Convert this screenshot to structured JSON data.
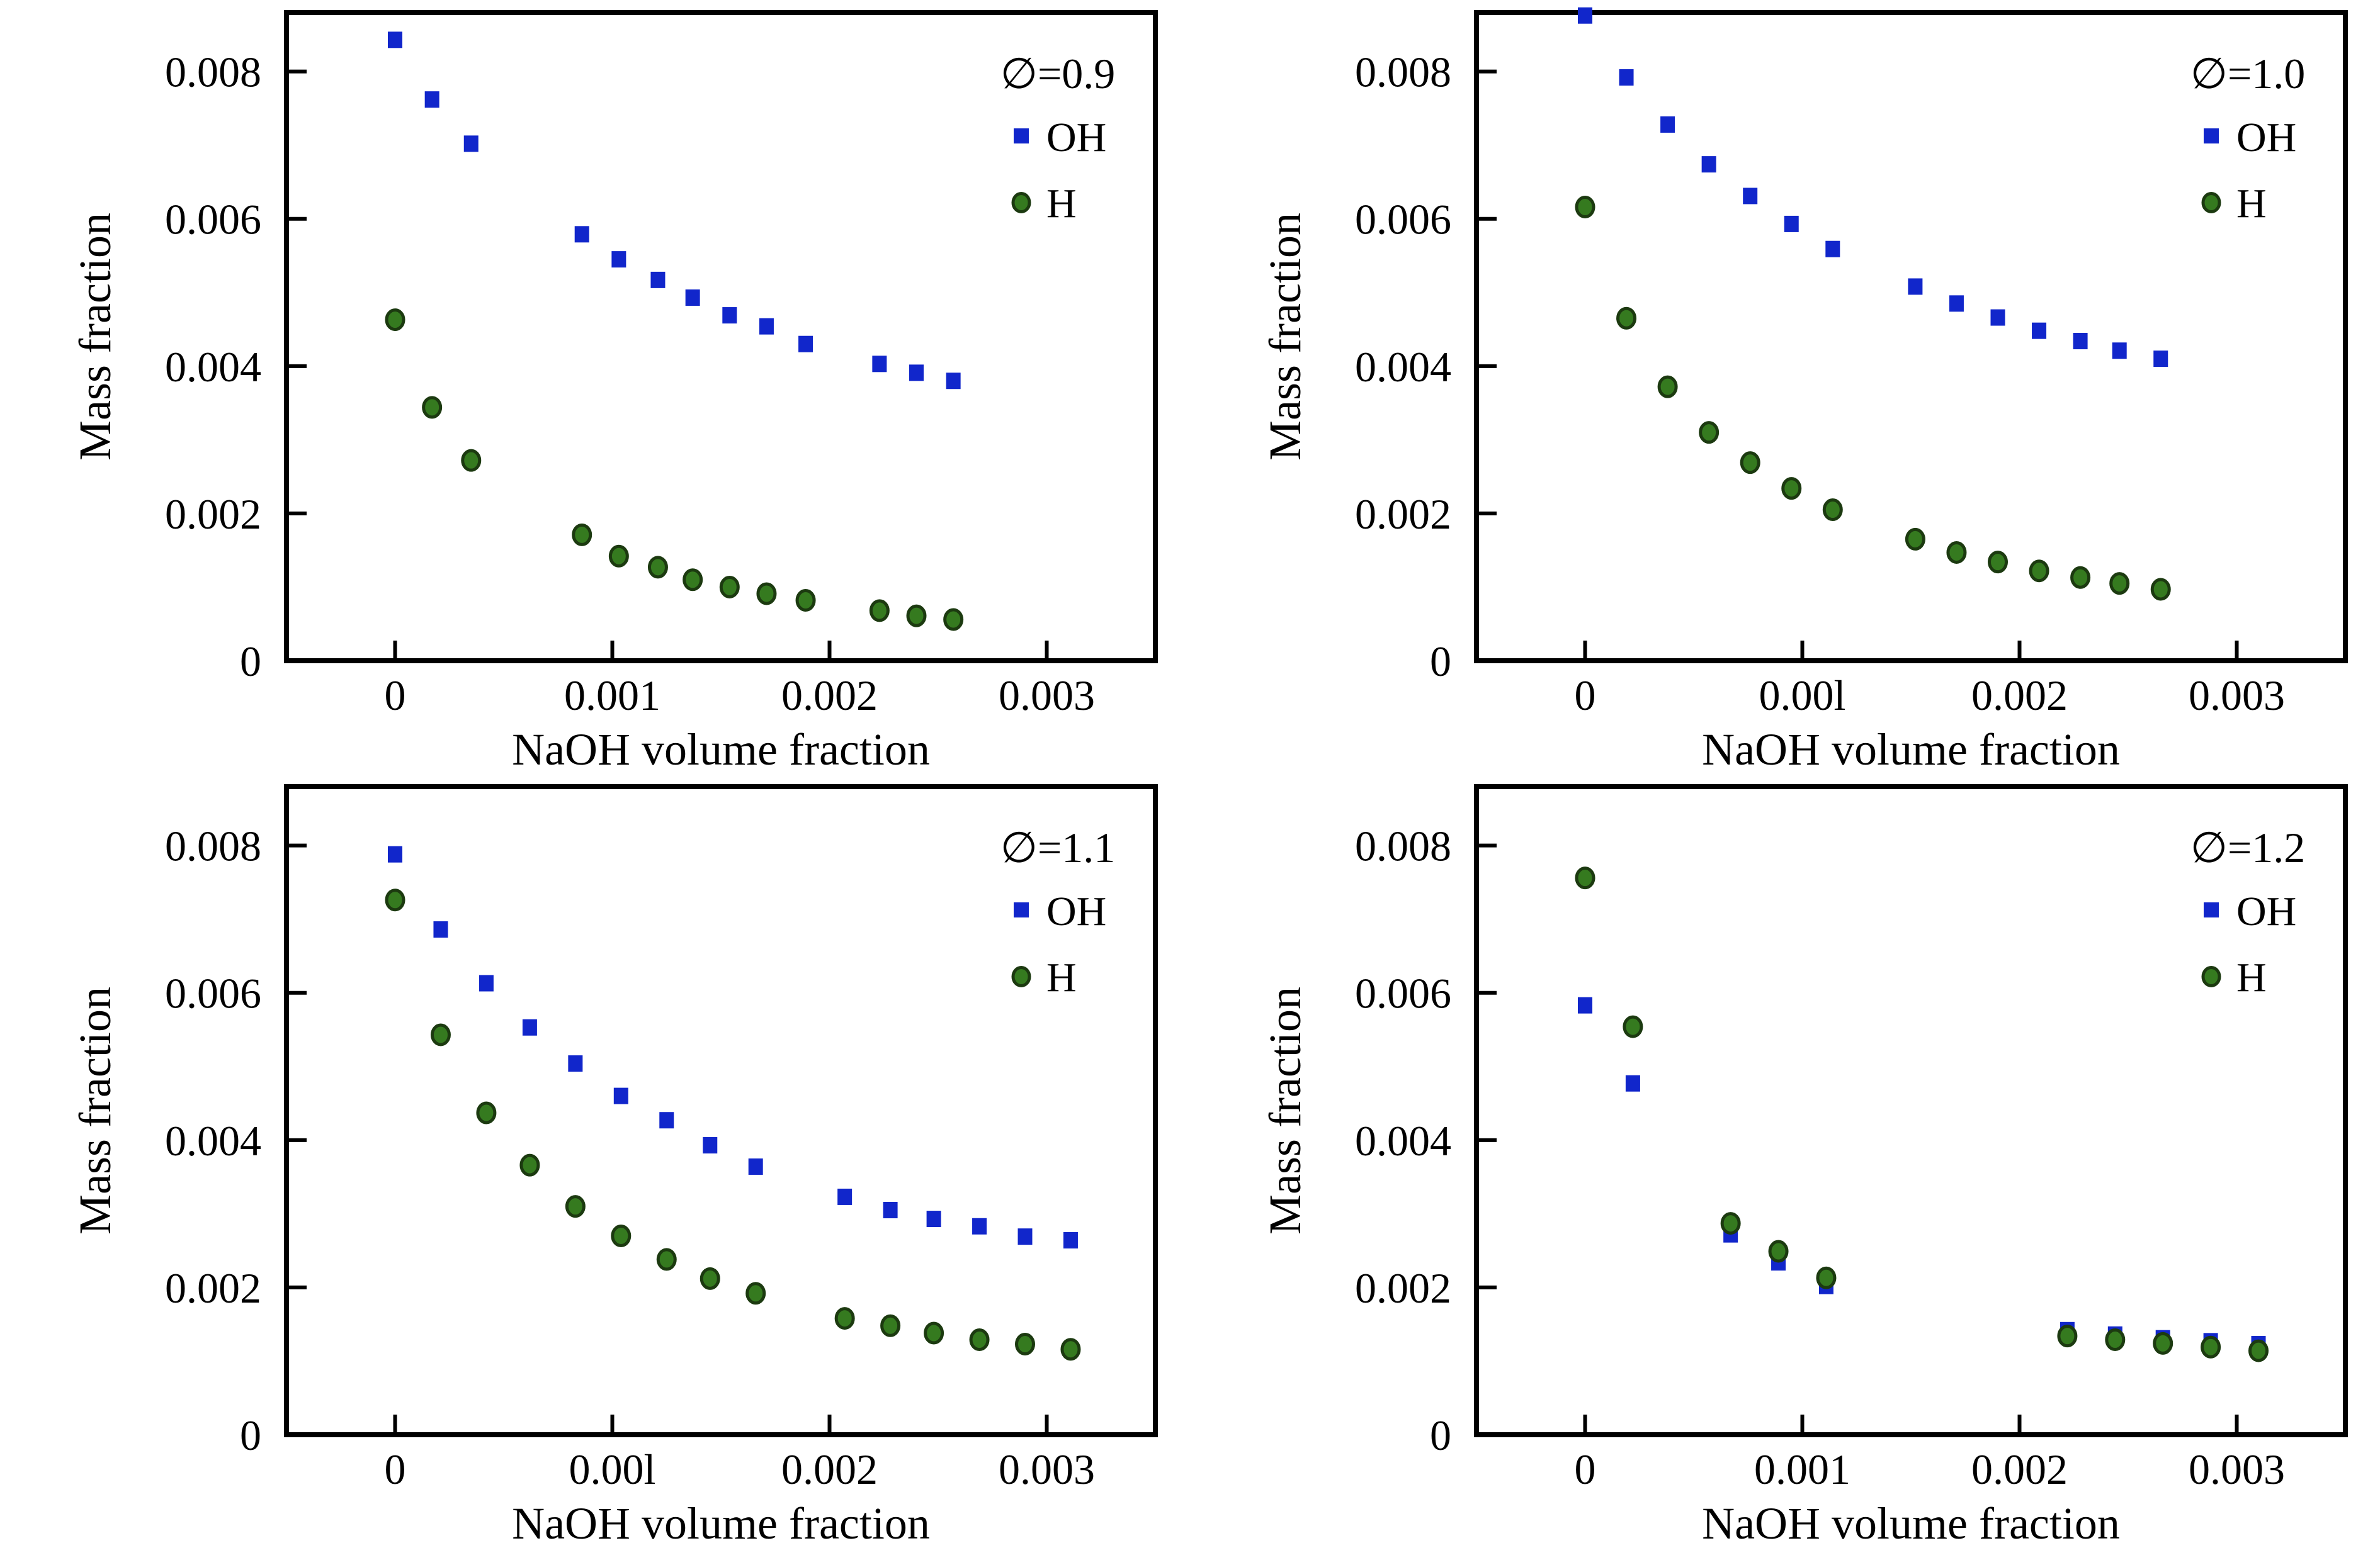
{
  "figure": {
    "background": "#ffffff",
    "text_color": "#000000",
    "axis_color": "#000000",
    "oh_color": "#1126cb",
    "h_fill_color": "#357a1f",
    "h_stroke_color": "#1c3a10"
  },
  "chart_data": [
    {
      "type": "scatter",
      "title": "∅=0.9",
      "legend_title": "∅=0.9",
      "legend_position": "top-right",
      "xlabel": "NaOH volume fraction",
      "ylabel": "Mass fraction",
      "xlim": [
        -0.0005,
        0.0035
      ],
      "ylim": [
        0,
        0.0088
      ],
      "grid": false,
      "x_ticks": [
        0,
        0.001,
        0.002,
        0.003
      ],
      "x_tick_labels": [
        "0",
        "0.001",
        "0.002",
        "0.003"
      ],
      "y_ticks": [
        0,
        0.002,
        0.004,
        0.006,
        0.008
      ],
      "y_tick_labels": [
        "0",
        "0.002",
        "0.004",
        "0.006",
        "0.008"
      ],
      "series": [
        {
          "name": "OH",
          "marker": "square",
          "color": "#1126cb",
          "x": [
            0,
            0.00017,
            0.00035,
            0.00086,
            0.00103,
            0.00121,
            0.00137,
            0.00154,
            0.00171,
            0.00189,
            0.00223,
            0.0024,
            0.00257
          ],
          "y": [
            0.00843,
            0.00762,
            0.00702,
            0.00579,
            0.00545,
            0.00517,
            0.00493,
            0.00469,
            0.00454,
            0.0043,
            0.00403,
            0.00391,
            0.0038
          ]
        },
        {
          "name": "H",
          "marker": "circle",
          "color": "#357a1f",
          "x": [
            0,
            0.00017,
            0.00035,
            0.00086,
            0.00103,
            0.00121,
            0.00137,
            0.00154,
            0.00171,
            0.00189,
            0.00223,
            0.0024,
            0.00257
          ],
          "y": [
            0.00463,
            0.00344,
            0.00272,
            0.00171,
            0.00142,
            0.00127,
            0.0011,
            0.001,
            0.00091,
            0.00082,
            0.00068,
            0.00061,
            0.00056
          ]
        }
      ]
    },
    {
      "type": "scatter",
      "title": "∅=1.0",
      "legend_title": "∅=1.0",
      "legend_position": "top-right",
      "xlabel": "NaOH volume fraction",
      "ylabel": "Mass fraction",
      "xlim": [
        -0.0005,
        0.0035
      ],
      "ylim": [
        0,
        0.0088
      ],
      "grid": false,
      "x_ticks": [
        0,
        0.001,
        0.002,
        0.003
      ],
      "x_tick_labels": [
        "0",
        "0.00l",
        "0.002",
        "0.003"
      ],
      "y_ticks": [
        0,
        0.002,
        0.004,
        0.006,
        0.008
      ],
      "y_tick_labels": [
        "0",
        "0.002",
        "0.004",
        "0.006",
        "0.008"
      ],
      "series": [
        {
          "name": "OH",
          "marker": "square",
          "color": "#1126cb",
          "x": [
            0,
            0.00019,
            0.00038,
            0.00057,
            0.00076,
            0.00095,
            0.00114,
            0.00152,
            0.00171,
            0.0019,
            0.00209,
            0.00228,
            0.00246,
            0.00265
          ],
          "y": [
            0.00876,
            0.00792,
            0.00728,
            0.00674,
            0.00631,
            0.00593,
            0.00559,
            0.00508,
            0.00485,
            0.00466,
            0.00448,
            0.00434,
            0.00421,
            0.0041
          ]
        },
        {
          "name": "H",
          "marker": "circle",
          "color": "#357a1f",
          "x": [
            0,
            0.00019,
            0.00038,
            0.00057,
            0.00076,
            0.00095,
            0.00114,
            0.00152,
            0.00171,
            0.0019,
            0.00209,
            0.00228,
            0.00246,
            0.00265
          ],
          "y": [
            0.00616,
            0.00465,
            0.00372,
            0.0031,
            0.00269,
            0.00234,
            0.00205,
            0.00165,
            0.00147,
            0.00134,
            0.00122,
            0.00113,
            0.00105,
            0.00097
          ]
        }
      ]
    },
    {
      "type": "scatter",
      "title": "∅=1.1",
      "legend_title": "∅=1.1",
      "legend_position": "top-right",
      "xlabel": "NaOH volume fraction",
      "ylabel": "Mass fraction",
      "xlim": [
        -0.0005,
        0.0035
      ],
      "ylim": [
        0,
        0.0088
      ],
      "grid": false,
      "x_ticks": [
        0,
        0.001,
        0.002,
        0.003
      ],
      "x_tick_labels": [
        "0",
        "0.00l",
        "0.002",
        "0.003"
      ],
      "y_ticks": [
        0,
        0.002,
        0.004,
        0.006,
        0.008
      ],
      "y_tick_labels": [
        "0",
        "0.002",
        "0.004",
        "0.006",
        "0.008"
      ],
      "series": [
        {
          "name": "OH",
          "marker": "square",
          "color": "#1126cb",
          "x": [
            0,
            0.00021,
            0.00042,
            0.00062,
            0.00083,
            0.00104,
            0.00125,
            0.00145,
            0.00166,
            0.00207,
            0.00228,
            0.00248,
            0.00269,
            0.0029,
            0.00311
          ],
          "y": [
            0.00788,
            0.00686,
            0.00613,
            0.00553,
            0.00504,
            0.0046,
            0.00427,
            0.00393,
            0.00364,
            0.00323,
            0.00305,
            0.00293,
            0.00283,
            0.00269,
            0.00264
          ]
        },
        {
          "name": "H",
          "marker": "circle",
          "color": "#357a1f",
          "x": [
            0,
            0.00021,
            0.00042,
            0.00062,
            0.00083,
            0.00104,
            0.00125,
            0.00145,
            0.00166,
            0.00207,
            0.00228,
            0.00248,
            0.00269,
            0.0029,
            0.00311
          ],
          "y": [
            0.00726,
            0.00543,
            0.00437,
            0.00366,
            0.0031,
            0.0027,
            0.00238,
            0.00212,
            0.00192,
            0.00158,
            0.00148,
            0.00138,
            0.00129,
            0.00123,
            0.00116
          ]
        }
      ]
    },
    {
      "type": "scatter",
      "title": "∅=1.2",
      "legend_title": "∅=1.2",
      "legend_position": "top-right",
      "xlabel": "NaOH volume fraction",
      "ylabel": "Mass fraction",
      "xlim": [
        -0.0005,
        0.0035
      ],
      "ylim": [
        0,
        0.0088
      ],
      "grid": false,
      "x_ticks": [
        0,
        0.001,
        0.002,
        0.003
      ],
      "x_tick_labels": [
        "0",
        "0.001",
        "0.002",
        "0.003"
      ],
      "y_ticks": [
        0,
        0.002,
        0.004,
        0.006,
        0.008
      ],
      "y_tick_labels": [
        "0",
        "0.002",
        "0.004",
        "0.006",
        "0.008"
      ],
      "series": [
        {
          "name": "OH",
          "marker": "square",
          "color": "#1126cb",
          "x": [
            0,
            0.00022,
            0.00067,
            0.00089,
            0.00111,
            0.00222,
            0.00244,
            0.00266,
            0.00288,
            0.0031
          ],
          "y": [
            0.00583,
            0.00477,
            0.00272,
            0.00234,
            0.00202,
            0.00142,
            0.00136,
            0.00131,
            0.00127,
            0.00123
          ]
        },
        {
          "name": "H",
          "marker": "circle",
          "color": "#357a1f",
          "x": [
            0,
            0.00022,
            0.00067,
            0.00089,
            0.00111,
            0.00222,
            0.00244,
            0.00266,
            0.00288,
            0.0031
          ],
          "y": [
            0.00756,
            0.00554,
            0.00287,
            0.00249,
            0.00213,
            0.00134,
            0.00129,
            0.00124,
            0.00119,
            0.00114
          ]
        }
      ]
    }
  ]
}
